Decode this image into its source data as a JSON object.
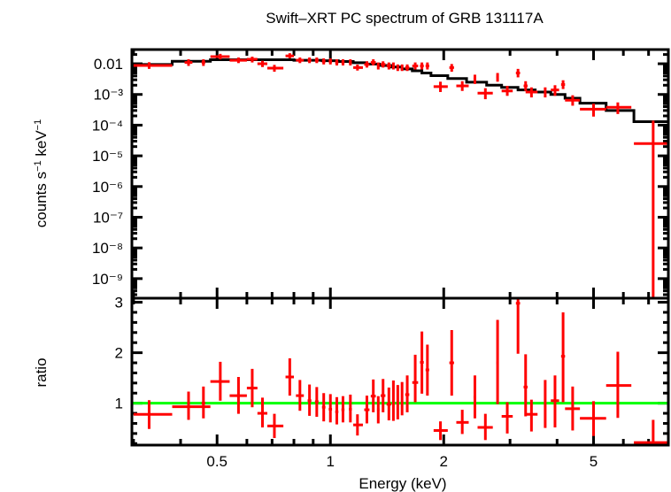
{
  "chart_data": [
    {
      "panel": "spectrum",
      "type": "scatter",
      "title": "Swift–XRT PC spectrum of GRB 131117A",
      "xlabel": "Energy (keV)",
      "ylabel": "counts s⁻¹ keV⁻¹",
      "xscale": "log",
      "yscale": "log",
      "xlim": [
        0.297,
        7.9
      ],
      "ylim": [
        2.3e-10,
        0.029
      ],
      "ytick_labels": [
        "0.01",
        "10⁻³",
        "10⁻⁴",
        "10⁻⁵",
        "10⁻⁶",
        "10⁻⁷",
        "10⁻⁸",
        "10⁻⁹"
      ],
      "ytick_values": [
        0.01,
        0.001,
        0.0001,
        1e-05,
        1e-06,
        1e-07,
        1e-08,
        1e-09
      ],
      "data_color": "#ff0000",
      "model_color": "#000000",
      "data": [
        {
          "e": 0.33,
          "elo": 0.3,
          "ehi": 0.38,
          "y": 0.0088,
          "ylo": 0.0068,
          "yhi": 0.0112
        },
        {
          "e": 0.42,
          "elo": 0.41,
          "ehi": 0.43,
          "y": 0.011,
          "ylo": 0.0085,
          "yhi": 0.014
        },
        {
          "e": 0.46,
          "elo": 0.455,
          "ehi": 0.465,
          "y": 0.011,
          "ylo": 0.0085,
          "yhi": 0.014
        },
        {
          "e": 0.51,
          "elo": 0.48,
          "ehi": 0.54,
          "y": 0.017,
          "ylo": 0.014,
          "yhi": 0.021
        },
        {
          "e": 0.57,
          "elo": 0.54,
          "ehi": 0.6,
          "y": 0.013,
          "ylo": 0.0105,
          "yhi": 0.016
        },
        {
          "e": 0.62,
          "elo": 0.6,
          "ehi": 0.64,
          "y": 0.014,
          "ylo": 0.011,
          "yhi": 0.017
        },
        {
          "e": 0.66,
          "elo": 0.64,
          "ehi": 0.68,
          "y": 0.01,
          "ylo": 0.0078,
          "yhi": 0.0125
        },
        {
          "e": 0.71,
          "elo": 0.68,
          "ehi": 0.75,
          "y": 0.0072,
          "ylo": 0.0055,
          "yhi": 0.0092
        },
        {
          "e": 0.78,
          "elo": 0.76,
          "ehi": 0.8,
          "y": 0.018,
          "ylo": 0.015,
          "yhi": 0.022
        },
        {
          "e": 0.83,
          "elo": 0.81,
          "ehi": 0.85,
          "y": 0.013,
          "ylo": 0.0105,
          "yhi": 0.016
        },
        {
          "e": 0.88,
          "elo": 0.87,
          "ehi": 0.89,
          "y": 0.013,
          "ylo": 0.0105,
          "yhi": 0.016
        },
        {
          "e": 0.92,
          "elo": 0.91,
          "ehi": 0.93,
          "y": 0.013,
          "ylo": 0.0105,
          "yhi": 0.016
        },
        {
          "e": 0.96,
          "elo": 0.95,
          "ehi": 0.97,
          "y": 0.012,
          "ylo": 0.0095,
          "yhi": 0.015
        },
        {
          "e": 1.0,
          "elo": 0.99,
          "ehi": 1.01,
          "y": 0.012,
          "ylo": 0.0095,
          "yhi": 0.015
        },
        {
          "e": 1.04,
          "elo": 1.03,
          "ehi": 1.05,
          "y": 0.011,
          "ylo": 0.0088,
          "yhi": 0.014
        },
        {
          "e": 1.08,
          "elo": 1.07,
          "ehi": 1.09,
          "y": 0.011,
          "ylo": 0.0088,
          "yhi": 0.014
        },
        {
          "e": 1.13,
          "elo": 1.12,
          "ehi": 1.14,
          "y": 0.011,
          "ylo": 0.0088,
          "yhi": 0.014
        },
        {
          "e": 1.18,
          "elo": 1.15,
          "ehi": 1.22,
          "y": 0.0075,
          "ylo": 0.006,
          "yhi": 0.0094
        },
        {
          "e": 1.25,
          "elo": 1.23,
          "ehi": 1.27,
          "y": 0.0095,
          "ylo": 0.0075,
          "yhi": 0.012
        },
        {
          "e": 1.3,
          "elo": 1.28,
          "ehi": 1.32,
          "y": 0.011,
          "ylo": 0.0088,
          "yhi": 0.014
        },
        {
          "e": 1.34,
          "elo": 1.33,
          "ehi": 1.35,
          "y": 0.0085,
          "ylo": 0.0065,
          "yhi": 0.011
        },
        {
          "e": 1.38,
          "elo": 1.36,
          "ehi": 1.4,
          "y": 0.0095,
          "ylo": 0.0075,
          "yhi": 0.012
        },
        {
          "e": 1.43,
          "elo": 1.41,
          "ehi": 1.45,
          "y": 0.0085,
          "ylo": 0.0065,
          "yhi": 0.011
        },
        {
          "e": 1.47,
          "elo": 1.46,
          "ehi": 1.48,
          "y": 0.0085,
          "ylo": 0.0065,
          "yhi": 0.011
        },
        {
          "e": 1.51,
          "elo": 1.5,
          "ehi": 1.52,
          "y": 0.0075,
          "ylo": 0.0058,
          "yhi": 0.0095
        },
        {
          "e": 1.55,
          "elo": 1.54,
          "ehi": 1.56,
          "y": 0.0075,
          "ylo": 0.0058,
          "yhi": 0.0095
        },
        {
          "e": 1.6,
          "elo": 1.58,
          "ehi": 1.62,
          "y": 0.0075,
          "ylo": 0.0058,
          "yhi": 0.0095
        },
        {
          "e": 1.68,
          "elo": 1.65,
          "ehi": 1.71,
          "y": 0.0085,
          "ylo": 0.0065,
          "yhi": 0.011
        },
        {
          "e": 1.75,
          "elo": 1.73,
          "ehi": 1.77,
          "y": 0.0085,
          "ylo": 0.0065,
          "yhi": 0.011
        },
        {
          "e": 1.81,
          "elo": 1.79,
          "ehi": 1.83,
          "y": 0.0085,
          "ylo": 0.0065,
          "yhi": 0.011
        },
        {
          "e": 1.96,
          "elo": 1.88,
          "ehi": 2.05,
          "y": 0.0018,
          "ylo": 0.0012,
          "yhi": 0.0026
        },
        {
          "e": 2.1,
          "elo": 2.07,
          "ehi": 2.13,
          "y": 0.0075,
          "ylo": 0.0055,
          "yhi": 0.0098
        },
        {
          "e": 2.24,
          "elo": 2.16,
          "ehi": 2.33,
          "y": 0.0019,
          "ylo": 0.0013,
          "yhi": 0.0027
        },
        {
          "e": 2.42,
          "elo": 2.4,
          "ehi": 2.44,
          "y": 0.0032,
          "ylo": 0.0022,
          "yhi": 0.0044
        },
        {
          "e": 2.58,
          "elo": 2.46,
          "ehi": 2.7,
          "y": 0.0011,
          "ylo": 0.0007,
          "yhi": 0.0016
        },
        {
          "e": 2.78,
          "elo": 2.76,
          "ehi": 2.8,
          "y": 0.0037,
          "ylo": 0.0026,
          "yhi": 0.005
        },
        {
          "e": 2.95,
          "elo": 2.85,
          "ehi": 3.05,
          "y": 0.0013,
          "ylo": 0.0009,
          "yhi": 0.0019
        },
        {
          "e": 3.15,
          "elo": 3.11,
          "ehi": 3.19,
          "y": 0.005,
          "ylo": 0.0036,
          "yhi": 0.0068
        },
        {
          "e": 3.3,
          "elo": 3.26,
          "ehi": 3.34,
          "y": 0.0019,
          "ylo": 0.0013,
          "yhi": 0.0027
        },
        {
          "e": 3.42,
          "elo": 3.3,
          "ehi": 3.55,
          "y": 0.0012,
          "ylo": 0.0008,
          "yhi": 0.0017
        },
        {
          "e": 3.72,
          "elo": 3.7,
          "ehi": 3.74,
          "y": 0.0012,
          "ylo": 0.0008,
          "yhi": 0.0017
        },
        {
          "e": 3.95,
          "elo": 3.85,
          "ehi": 4.05,
          "y": 0.0014,
          "ylo": 0.0009,
          "yhi": 0.002
        },
        {
          "e": 4.15,
          "elo": 4.1,
          "ehi": 4.2,
          "y": 0.0021,
          "ylo": 0.0015,
          "yhi": 0.0029
        },
        {
          "e": 4.4,
          "elo": 4.2,
          "ehi": 4.6,
          "y": 0.00065,
          "ylo": 0.00043,
          "yhi": 0.00094
        },
        {
          "e": 5.0,
          "elo": 4.6,
          "ehi": 5.4,
          "y": 0.00033,
          "ylo": 0.00019,
          "yhi": 0.0005
        },
        {
          "e": 5.8,
          "elo": 5.4,
          "ehi": 6.3,
          "y": 0.00038,
          "ylo": 0.00023,
          "yhi": 0.00055
        },
        {
          "e": 7.2,
          "elo": 6.4,
          "ehi": 7.9,
          "y": 2.5e-05,
          "ylo": 2.3e-10,
          "yhi": 0.00014
        }
      ],
      "model": [
        {
          "elo": 0.297,
          "ehi": 0.38,
          "y": 0.0095
        },
        {
          "elo": 0.38,
          "ehi": 0.48,
          "y": 0.012
        },
        {
          "elo": 0.48,
          "ehi": 0.64,
          "y": 0.0135
        },
        {
          "elo": 0.64,
          "ehi": 0.8,
          "y": 0.0135
        },
        {
          "elo": 0.8,
          "ehi": 0.95,
          "y": 0.013
        },
        {
          "elo": 0.95,
          "ehi": 1.05,
          "y": 0.0125
        },
        {
          "elo": 1.05,
          "ehi": 1.15,
          "y": 0.0118
        },
        {
          "elo": 1.15,
          "ehi": 1.25,
          "y": 0.0108
        },
        {
          "elo": 1.25,
          "ehi": 1.35,
          "y": 0.0098
        },
        {
          "elo": 1.35,
          "ehi": 1.45,
          "y": 0.0088
        },
        {
          "elo": 1.45,
          "ehi": 1.55,
          "y": 0.0078
        },
        {
          "elo": 1.55,
          "ehi": 1.65,
          "y": 0.0068
        },
        {
          "elo": 1.65,
          "ehi": 1.75,
          "y": 0.0059
        },
        {
          "elo": 1.75,
          "ehi": 1.85,
          "y": 0.005
        },
        {
          "elo": 1.85,
          "ehi": 2.05,
          "y": 0.0041
        },
        {
          "elo": 2.05,
          "ehi": 2.3,
          "y": 0.0033
        },
        {
          "elo": 2.3,
          "ehi": 2.6,
          "y": 0.0025
        },
        {
          "elo": 2.6,
          "ehi": 2.85,
          "y": 0.002
        },
        {
          "elo": 2.85,
          "ehi": 3.15,
          "y": 0.0017
        },
        {
          "elo": 3.15,
          "ehi": 3.5,
          "y": 0.0014
        },
        {
          "elo": 3.5,
          "ehi": 3.85,
          "y": 0.0012
        },
        {
          "elo": 3.85,
          "ehi": 4.2,
          "y": 0.001
        },
        {
          "elo": 4.2,
          "ehi": 4.6,
          "y": 0.00075
        },
        {
          "elo": 4.6,
          "ehi": 5.4,
          "y": 0.00052
        },
        {
          "elo": 5.4,
          "ehi": 6.4,
          "y": 0.0003
        },
        {
          "elo": 6.4,
          "ehi": 7.9,
          "y": 0.00013
        }
      ]
    },
    {
      "panel": "ratio",
      "type": "scatter",
      "xlabel": "Energy (keV)",
      "ylabel": "ratio",
      "xscale": "log",
      "yscale": "linear",
      "xlim": [
        0.297,
        7.9
      ],
      "ylim": [
        0.17,
        3.08
      ],
      "xtick_labels": [
        "0.5",
        "1",
        "2",
        "5"
      ],
      "xtick_values": [
        0.5,
        1,
        2,
        5
      ],
      "ytick_labels": [
        "1",
        "2",
        "3"
      ],
      "ytick_values": [
        1,
        2,
        3
      ],
      "reference_line": 1.0,
      "reference_color": "#00ff00",
      "data_color": "#ff0000",
      "data": [
        {
          "e": 0.33,
          "elo": 0.3,
          "ehi": 0.38,
          "y": 0.78,
          "ylo": 0.49,
          "yhi": 1.06
        },
        {
          "e": 0.42,
          "elo": 0.38,
          "ehi": 0.48,
          "y": 0.93,
          "ylo": 0.67,
          "yhi": 1.23
        },
        {
          "e": 0.46,
          "elo": 0.455,
          "ehi": 0.465,
          "y": 1.0,
          "ylo": 0.7,
          "yhi": 1.33
        },
        {
          "e": 0.51,
          "elo": 0.48,
          "ehi": 0.54,
          "y": 1.43,
          "ylo": 1.05,
          "yhi": 1.82
        },
        {
          "e": 0.57,
          "elo": 0.54,
          "ehi": 0.6,
          "y": 1.15,
          "ylo": 0.79,
          "yhi": 1.52
        },
        {
          "e": 0.62,
          "elo": 0.6,
          "ehi": 0.64,
          "y": 1.3,
          "ylo": 0.92,
          "yhi": 1.68
        },
        {
          "e": 0.66,
          "elo": 0.64,
          "ehi": 0.68,
          "y": 0.8,
          "ylo": 0.52,
          "yhi": 1.11
        },
        {
          "e": 0.71,
          "elo": 0.68,
          "ehi": 0.75,
          "y": 0.55,
          "ylo": 0.31,
          "yhi": 0.79
        },
        {
          "e": 0.78,
          "elo": 0.76,
          "ehi": 0.8,
          "y": 1.52,
          "ylo": 1.15,
          "yhi": 1.89
        },
        {
          "e": 0.83,
          "elo": 0.81,
          "ehi": 0.85,
          "y": 1.15,
          "ylo": 0.85,
          "yhi": 1.46
        },
        {
          "e": 0.88,
          "elo": 0.87,
          "ehi": 0.89,
          "y": 1.05,
          "ylo": 0.75,
          "yhi": 1.37
        },
        {
          "e": 0.92,
          "elo": 0.91,
          "ehi": 0.93,
          "y": 1.03,
          "ylo": 0.73,
          "yhi": 1.32
        },
        {
          "e": 0.96,
          "elo": 0.95,
          "ehi": 0.97,
          "y": 0.92,
          "ylo": 0.64,
          "yhi": 1.2
        },
        {
          "e": 1.0,
          "elo": 0.99,
          "ehi": 1.01,
          "y": 0.88,
          "ylo": 0.62,
          "yhi": 1.18
        },
        {
          "e": 1.04,
          "elo": 1.03,
          "ehi": 1.05,
          "y": 0.83,
          "ylo": 0.58,
          "yhi": 1.12
        },
        {
          "e": 1.08,
          "elo": 1.07,
          "ehi": 1.09,
          "y": 0.87,
          "ylo": 0.62,
          "yhi": 1.14
        },
        {
          "e": 1.13,
          "elo": 1.12,
          "ehi": 1.14,
          "y": 0.88,
          "ylo": 0.62,
          "yhi": 1.17
        },
        {
          "e": 1.18,
          "elo": 1.15,
          "ehi": 1.22,
          "y": 0.57,
          "ylo": 0.36,
          "yhi": 0.78
        },
        {
          "e": 1.25,
          "elo": 1.23,
          "ehi": 1.27,
          "y": 0.87,
          "ylo": 0.6,
          "yhi": 1.15
        },
        {
          "e": 1.3,
          "elo": 1.28,
          "ehi": 1.32,
          "y": 1.14,
          "ylo": 0.82,
          "yhi": 1.47
        },
        {
          "e": 1.34,
          "elo": 1.33,
          "ehi": 1.35,
          "y": 0.87,
          "ylo": 0.6,
          "yhi": 1.14
        },
        {
          "e": 1.38,
          "elo": 1.36,
          "ehi": 1.4,
          "y": 1.15,
          "ylo": 0.82,
          "yhi": 1.48
        },
        {
          "e": 1.43,
          "elo": 1.41,
          "ehi": 1.45,
          "y": 0.98,
          "ylo": 0.66,
          "yhi": 1.31
        },
        {
          "e": 1.47,
          "elo": 1.46,
          "ehi": 1.48,
          "y": 0.98,
          "ylo": 0.65,
          "yhi": 1.45
        },
        {
          "e": 1.51,
          "elo": 1.5,
          "ehi": 1.52,
          "y": 0.98,
          "ylo": 0.68,
          "yhi": 1.36
        },
        {
          "e": 1.55,
          "elo": 1.54,
          "ehi": 1.56,
          "y": 1.07,
          "ylo": 0.76,
          "yhi": 1.42
        },
        {
          "e": 1.6,
          "elo": 1.58,
          "ehi": 1.62,
          "y": 1.17,
          "ylo": 0.82,
          "yhi": 1.55
        },
        {
          "e": 1.68,
          "elo": 1.65,
          "ehi": 1.71,
          "y": 1.41,
          "ylo": 1.02,
          "yhi": 1.96
        },
        {
          "e": 1.75,
          "elo": 1.73,
          "ehi": 1.77,
          "y": 1.81,
          "ylo": 1.19,
          "yhi": 2.42
        },
        {
          "e": 1.81,
          "elo": 1.79,
          "ehi": 1.83,
          "y": 1.66,
          "ylo": 1.15,
          "yhi": 2.16
        },
        {
          "e": 1.96,
          "elo": 1.88,
          "ehi": 2.05,
          "y": 0.46,
          "ylo": 0.27,
          "yhi": 0.64
        },
        {
          "e": 2.1,
          "elo": 2.07,
          "ehi": 2.13,
          "y": 1.8,
          "ylo": 1.15,
          "yhi": 2.45
        },
        {
          "e": 2.24,
          "elo": 2.16,
          "ehi": 2.33,
          "y": 0.62,
          "ylo": 0.39,
          "yhi": 0.87
        },
        {
          "e": 2.42,
          "elo": 2.4,
          "ehi": 2.44,
          "y": 1.12,
          "ylo": 0.7,
          "yhi": 1.55
        },
        {
          "e": 2.58,
          "elo": 2.46,
          "ehi": 2.7,
          "y": 0.52,
          "ylo": 0.27,
          "yhi": 0.79
        },
        {
          "e": 2.78,
          "elo": 2.76,
          "ehi": 2.8,
          "y": 1.8,
          "ylo": 0.98,
          "yhi": 2.65
        },
        {
          "e": 2.95,
          "elo": 2.85,
          "ehi": 3.05,
          "y": 0.74,
          "ylo": 0.4,
          "yhi": 1.02
        },
        {
          "e": 3.15,
          "elo": 3.11,
          "ehi": 3.19,
          "y": 2.98,
          "ylo": 1.98,
          "yhi": 3.08
        },
        {
          "e": 3.3,
          "elo": 3.26,
          "ehi": 3.34,
          "y": 1.32,
          "ylo": 0.74,
          "yhi": 1.97
        },
        {
          "e": 3.42,
          "elo": 3.3,
          "ehi": 3.55,
          "y": 0.78,
          "ylo": 0.44,
          "yhi": 1.07
        },
        {
          "e": 3.72,
          "elo": 3.7,
          "ehi": 3.74,
          "y": 0.99,
          "ylo": 0.51,
          "yhi": 1.46
        },
        {
          "e": 3.95,
          "elo": 3.85,
          "ehi": 4.05,
          "y": 1.05,
          "ylo": 0.52,
          "yhi": 1.55
        },
        {
          "e": 4.15,
          "elo": 4.1,
          "ehi": 4.2,
          "y": 1.93,
          "ylo": 1.02,
          "yhi": 2.8
        },
        {
          "e": 4.4,
          "elo": 4.2,
          "ehi": 4.6,
          "y": 0.89,
          "ylo": 0.46,
          "yhi": 1.33
        },
        {
          "e": 5.0,
          "elo": 4.6,
          "ehi": 5.4,
          "y": 0.7,
          "ylo": 0.35,
          "yhi": 1.04
        },
        {
          "e": 5.8,
          "elo": 5.4,
          "ehi": 6.3,
          "y": 1.35,
          "ylo": 0.71,
          "yhi": 2.02
        },
        {
          "e": 7.2,
          "elo": 6.4,
          "ehi": 7.9,
          "y": 0.22,
          "ylo": 0.17,
          "yhi": 0.67
        }
      ]
    }
  ]
}
